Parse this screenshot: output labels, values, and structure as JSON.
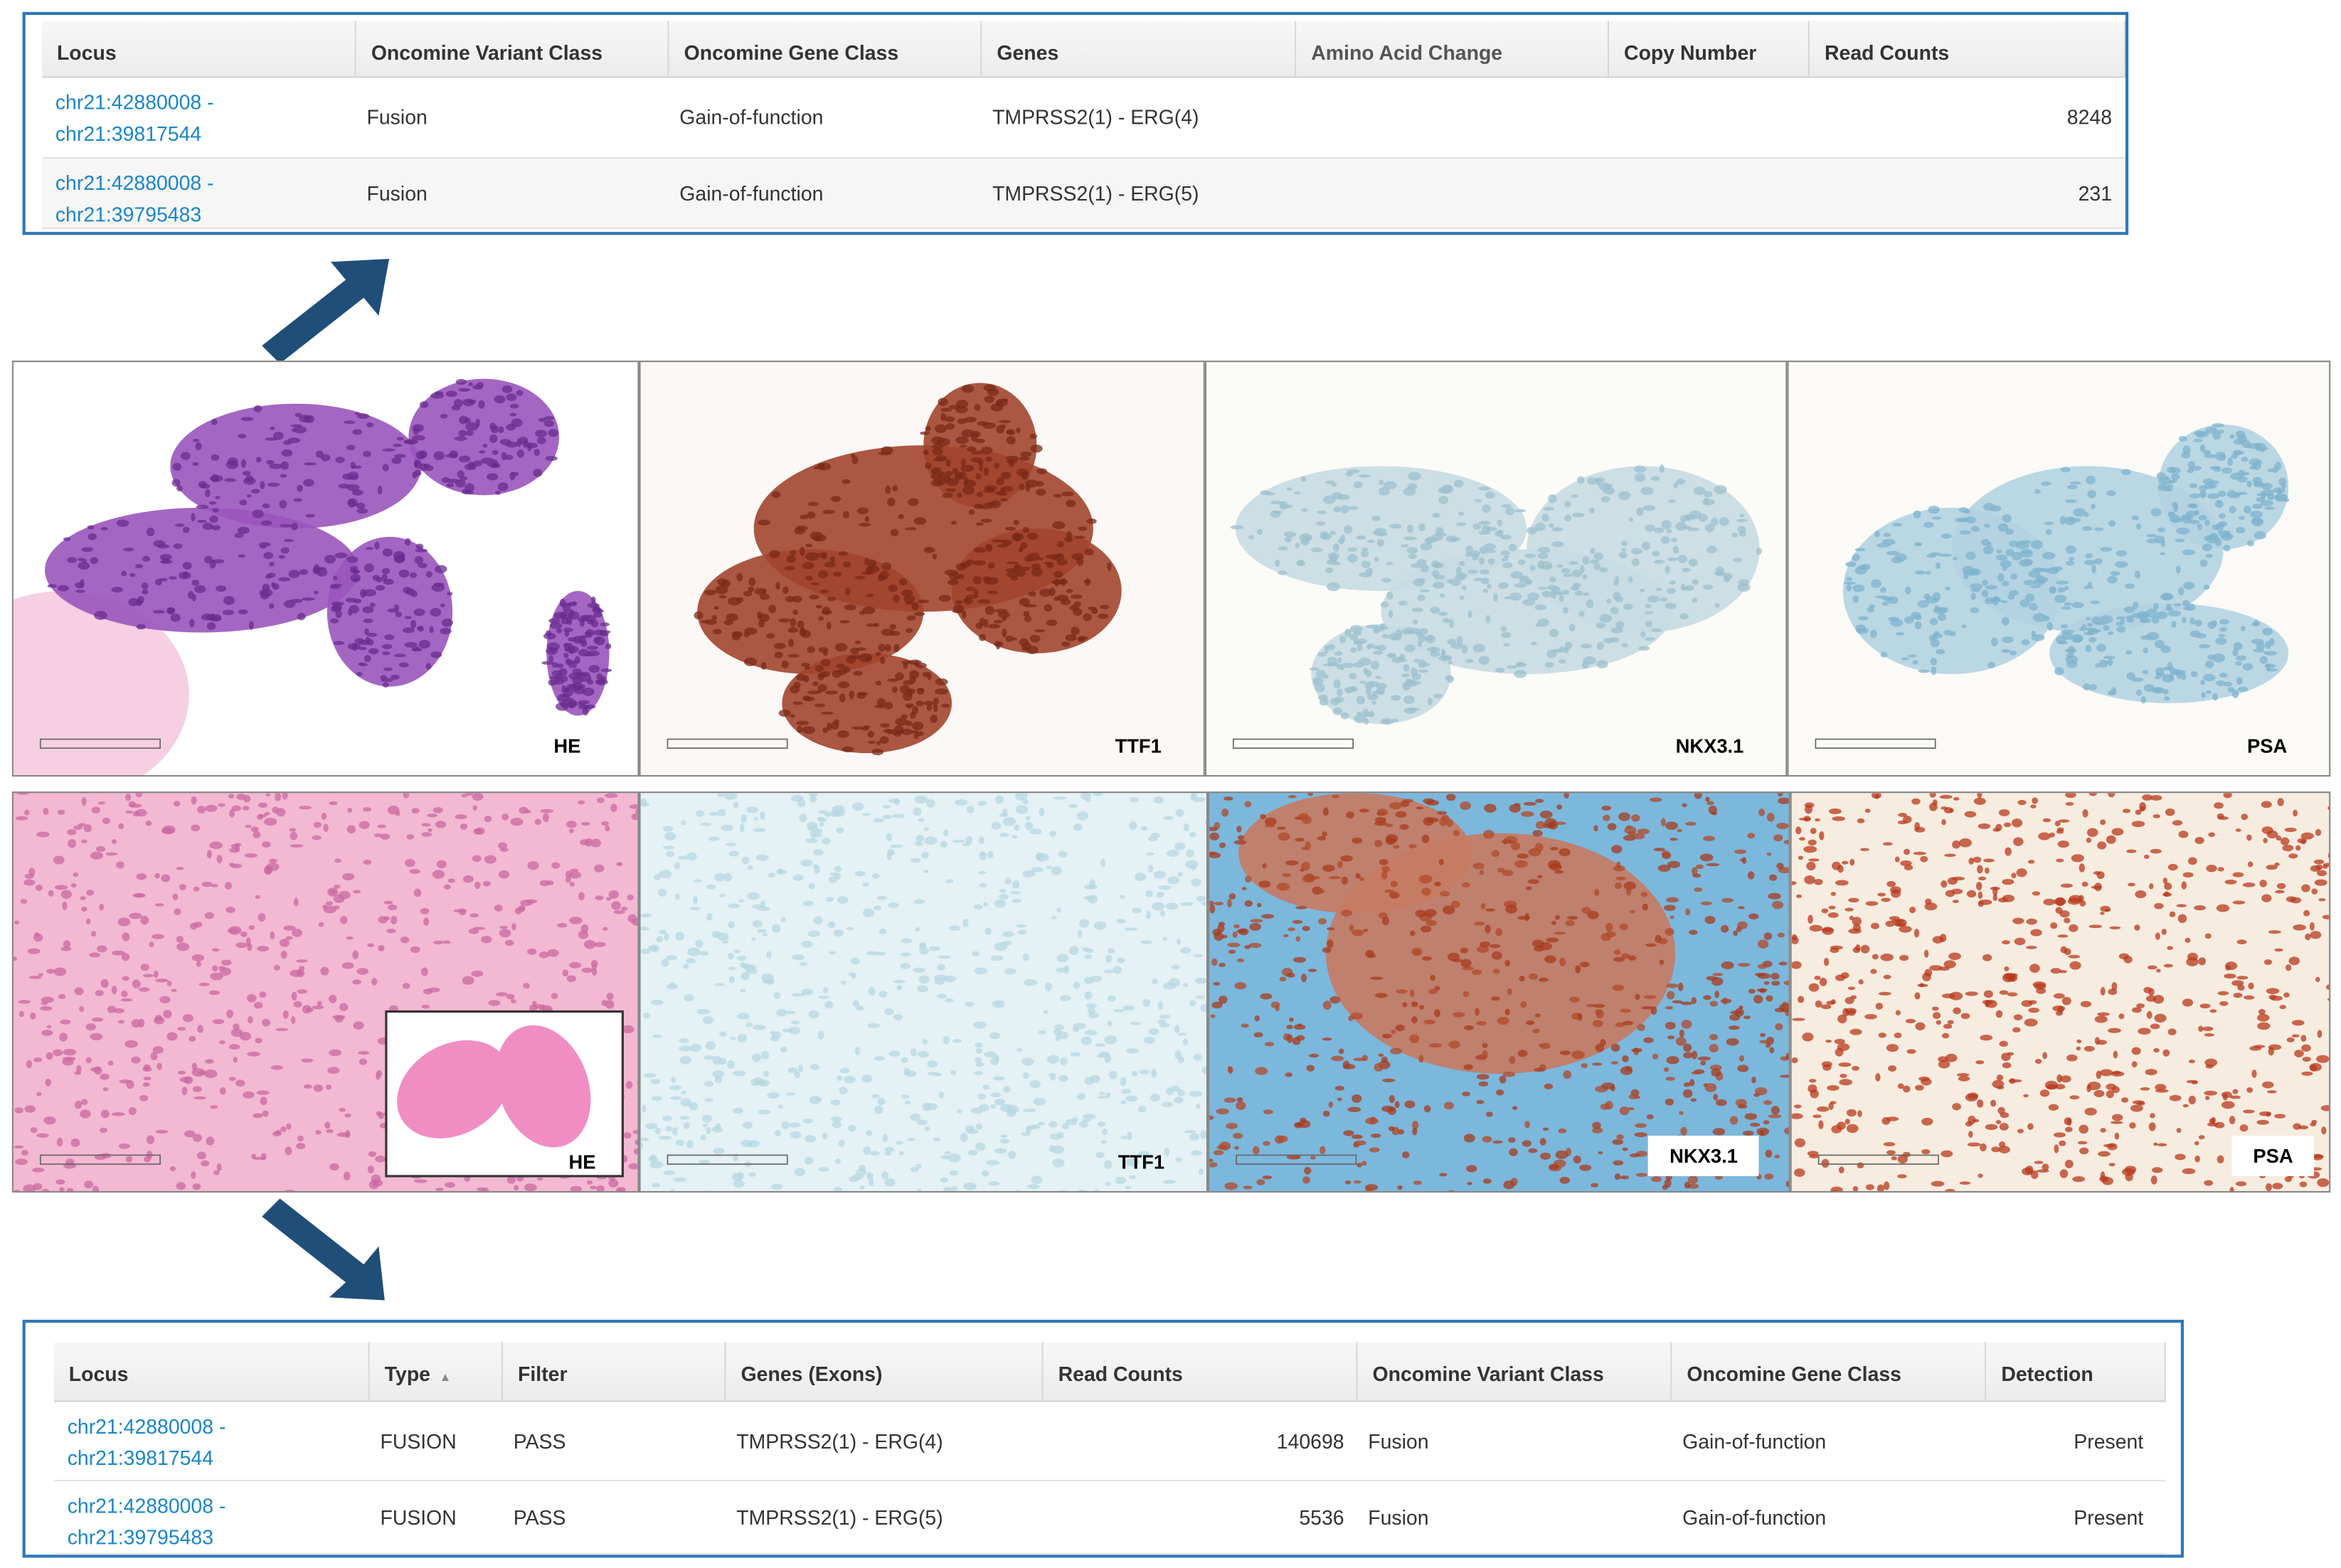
{
  "top_table": {
    "headers": [
      "Locus",
      "Oncomine Variant Class",
      "Oncomine Gene Class",
      "Genes",
      "Amino Acid Change",
      "Copy Number",
      "Read Counts"
    ],
    "rows": [
      {
        "locus": [
          "chr21:42880008 -",
          "chr21:39817544"
        ],
        "variant_class": "Fusion",
        "gene_class": "Gain-of-function",
        "genes": "TMPRSS2(1) - ERG(4)",
        "read_counts": "8248"
      },
      {
        "locus": [
          "chr21:42880008 -",
          "chr21:39795483"
        ],
        "variant_class": "Fusion",
        "gene_class": "Gain-of-function",
        "genes": "TMPRSS2(1) - ERG(5)",
        "read_counts": "231"
      }
    ]
  },
  "panels_row1": [
    "HE",
    "TTF1",
    "NKX3.1",
    "PSA"
  ],
  "panels_row2": [
    "HE",
    "TTF1",
    "NKX3.1",
    "PSA"
  ],
  "bottom_table": {
    "headers": [
      "Locus",
      "Type",
      "Filter",
      "Genes (Exons)",
      "Read Counts",
      "Oncomine Variant Class",
      "Oncomine Gene Class",
      "Detection"
    ],
    "rows": [
      {
        "locus": [
          "chr21:42880008 -",
          "chr21:39817544"
        ],
        "type": "FUSION",
        "filter": "PASS",
        "genes": "TMPRSS2(1) - ERG(4)",
        "read_counts": "140698",
        "variant_class": "Fusion",
        "gene_class": "Gain-of-function",
        "detection": "Present"
      },
      {
        "locus": [
          "chr21:42880008 -",
          "chr21:39795483"
        ],
        "type": "FUSION",
        "filter": "PASS",
        "genes": "TMPRSS2(1) - ERG(5)",
        "read_counts": "5536",
        "variant_class": "Fusion",
        "gene_class": "Gain-of-function",
        "detection": "Present"
      }
    ]
  }
}
